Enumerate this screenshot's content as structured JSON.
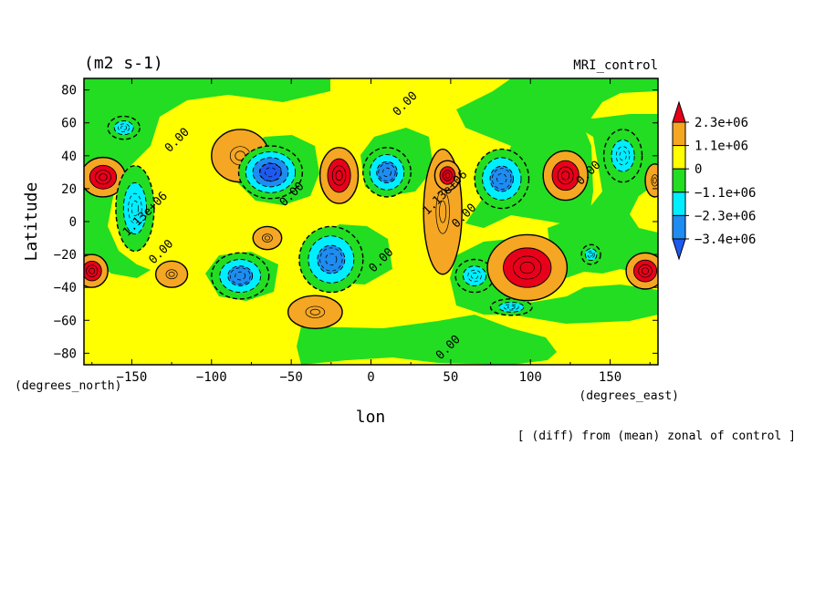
{
  "chart_data": {
    "type": "heatmap",
    "title": "(m2 s-1)",
    "subtitle": "MRI_control",
    "xlabel": "lon",
    "ylabel": "Latitude",
    "x_units": "(degrees_east)",
    "y_units": "(degrees_north)",
    "footnote": "[ (diff) from (mean) zonal of control ]",
    "xlim": [
      -180,
      180
    ],
    "ylim": [
      -87,
      87
    ],
    "x_ticks": [
      -150,
      -100,
      -50,
      0,
      50,
      100,
      150
    ],
    "y_ticks": [
      80,
      60,
      40,
      20,
      0,
      -20,
      -40,
      -60,
      -80
    ],
    "colorbar": {
      "labels": [
        "2.3e+06",
        "1.1e+06",
        "0",
        "−1.1e+06",
        "−2.3e+06",
        "−3.4e+06"
      ],
      "bounds": [
        2300000,
        1100000,
        0,
        -1100000,
        -2300000,
        -3400000
      ],
      "colors": [
        "#e8001a",
        "#f5a623",
        "#ffff00",
        "#22dd22",
        "#00eeff",
        "#1e8cf0",
        "#1e5aef"
      ]
    },
    "background_color": "#ffff00",
    "contour_labels": [
      {
        "text": "0.00",
        "lon": 23,
        "lat": 70
      },
      {
        "text": "0.00",
        "lon": -120,
        "lat": 48
      },
      {
        "text": "1.13e+06",
        "lon": -140,
        "lat": 3
      },
      {
        "text": "0.00",
        "lon": -130,
        "lat": -20
      },
      {
        "text": "0.00",
        "lon": -48,
        "lat": 15
      },
      {
        "text": "0.00",
        "lon": 8,
        "lat": -25
      },
      {
        "text": "1.13e+06",
        "lon": 48,
        "lat": 16
      },
      {
        "text": "0.00",
        "lon": 60,
        "lat": 2
      },
      {
        "text": "0.00",
        "lon": 138,
        "lat": 28
      },
      {
        "text": "0.00",
        "lon": 50,
        "lat": -78
      }
    ],
    "features": [
      {
        "lon": -168,
        "lat": 27,
        "rx": 14,
        "ry": 12,
        "level": 3
      },
      {
        "lon": -175,
        "lat": -30,
        "rx": 10,
        "ry": 10,
        "level": 3
      },
      {
        "lon": -148,
        "lat": 8,
        "rx": 12,
        "ry": 26,
        "level": -2
      },
      {
        "lon": -155,
        "lat": 57,
        "rx": 10,
        "ry": 7,
        "level": -2
      },
      {
        "lon": -125,
        "lat": -32,
        "rx": 10,
        "ry": 8,
        "level": 2
      },
      {
        "lon": -82,
        "lat": 40,
        "rx": 18,
        "ry": 16,
        "level": 2
      },
      {
        "lon": -63,
        "lat": 30,
        "rx": 20,
        "ry": 16,
        "level": -4
      },
      {
        "lon": -82,
        "lat": -33,
        "rx": 18,
        "ry": 14,
        "level": -3
      },
      {
        "lon": -65,
        "lat": -10,
        "rx": 9,
        "ry": 7,
        "level": 2
      },
      {
        "lon": -20,
        "lat": 28,
        "rx": 12,
        "ry": 17,
        "level": 3
      },
      {
        "lon": 10,
        "lat": 30,
        "rx": 15,
        "ry": 15,
        "level": -3
      },
      {
        "lon": -25,
        "lat": -23,
        "rx": 20,
        "ry": 20,
        "level": -3
      },
      {
        "lon": -35,
        "lat": -55,
        "rx": 17,
        "ry": 10,
        "level": 2
      },
      {
        "lon": 45,
        "lat": 6,
        "rx": 12,
        "ry": 38,
        "level": 2
      },
      {
        "lon": 48,
        "lat": 28,
        "rx": 8,
        "ry": 9,
        "level": 3
      },
      {
        "lon": 82,
        "lat": 26,
        "rx": 17,
        "ry": 18,
        "level": -3
      },
      {
        "lon": 65,
        "lat": -33,
        "rx": 12,
        "ry": 10,
        "level": -1
      },
      {
        "lon": 88,
        "lat": -52,
        "rx": 13,
        "ry": 5,
        "level": -2
      },
      {
        "lon": 98,
        "lat": -28,
        "rx": 25,
        "ry": 20,
        "level": 3
      },
      {
        "lon": 122,
        "lat": 28,
        "rx": 14,
        "ry": 15,
        "level": 3
      },
      {
        "lon": 138,
        "lat": -20,
        "rx": 6,
        "ry": 6,
        "level": -2
      },
      {
        "lon": 158,
        "lat": 40,
        "rx": 12,
        "ry": 16,
        "level": -2
      },
      {
        "lon": 172,
        "lat": -30,
        "rx": 12,
        "ry": 11,
        "level": 3
      },
      {
        "lon": 178,
        "lat": 25,
        "rx": 6,
        "ry": 10,
        "level": 2
      }
    ]
  }
}
